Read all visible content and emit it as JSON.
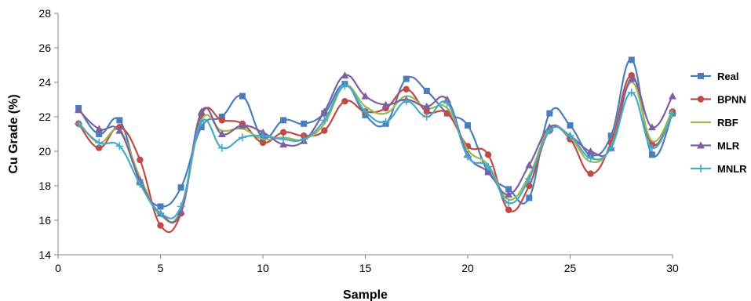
{
  "chart_data": {
    "type": "line",
    "title": "",
    "xlabel": "Sample",
    "ylabel": "Cu Grade (%)",
    "xlim": [
      0,
      30
    ],
    "ylim": [
      14,
      28
    ],
    "xticks": [
      0,
      5,
      10,
      15,
      20,
      25,
      30
    ],
    "yticks": [
      14,
      16,
      18,
      20,
      22,
      24,
      26,
      28
    ],
    "grid": false,
    "legend_position": "right",
    "x": [
      1,
      2,
      3,
      4,
      5,
      6,
      7,
      8,
      9,
      10,
      11,
      12,
      13,
      14,
      15,
      16,
      17,
      18,
      19,
      20,
      21,
      22,
      23,
      24,
      25,
      26,
      27,
      28,
      29,
      30
    ],
    "series": [
      {
        "name": "Real",
        "color": "#4a7ebb",
        "marker": "square",
        "values": [
          22.5,
          21.0,
          21.8,
          18.2,
          16.8,
          17.9,
          21.4,
          22.0,
          23.2,
          20.8,
          21.8,
          21.6,
          22.2,
          23.9,
          22.1,
          21.6,
          24.2,
          23.5,
          22.2,
          21.5,
          18.8,
          17.8,
          17.3,
          22.2,
          21.5,
          19.8,
          20.9,
          25.3,
          19.8,
          22.2
        ]
      },
      {
        "name": "BPNN",
        "color": "#be4b48",
        "marker": "circle",
        "values": [
          21.6,
          20.2,
          21.4,
          19.5,
          15.7,
          16.4,
          22.1,
          21.8,
          21.6,
          20.5,
          21.1,
          20.9,
          21.2,
          22.9,
          22.3,
          22.5,
          23.6,
          22.3,
          22.2,
          20.3,
          19.8,
          16.6,
          18.0,
          21.2,
          20.7,
          18.7,
          20.5,
          24.4,
          20.4,
          22.3
        ]
      },
      {
        "name": "RBF",
        "color": "#98b954",
        "marker": "none",
        "values": [
          21.7,
          20.5,
          21.2,
          18.5,
          16.3,
          16.6,
          21.8,
          21.2,
          21.3,
          20.7,
          20.8,
          20.7,
          21.6,
          23.8,
          22.6,
          22.2,
          23.2,
          22.5,
          22.5,
          20.1,
          19.2,
          17.2,
          18.6,
          21.3,
          20.8,
          19.4,
          20.3,
          24.0,
          20.6,
          22.4
        ]
      },
      {
        "name": "MLR",
        "color": "#7d60a0",
        "marker": "triangle",
        "values": [
          22.4,
          21.3,
          21.2,
          18.3,
          16.4,
          16.5,
          22.3,
          21.0,
          21.5,
          21.1,
          20.4,
          20.6,
          22.3,
          24.4,
          23.2,
          22.7,
          23.0,
          22.6,
          23.0,
          19.8,
          18.8,
          17.5,
          19.2,
          21.4,
          20.9,
          20.0,
          20.2,
          24.2,
          21.4,
          23.2
        ]
      },
      {
        "name": "MNLR",
        "color": "#46aac5",
        "marker": "plus",
        "values": [
          21.6,
          20.5,
          20.3,
          18.1,
          16.4,
          16.8,
          21.7,
          20.2,
          20.8,
          20.9,
          20.7,
          20.7,
          21.8,
          23.8,
          22.3,
          21.7,
          22.9,
          22.0,
          22.8,
          19.7,
          19.1,
          17.0,
          18.4,
          21.2,
          20.9,
          19.6,
          20.2,
          23.4,
          20.2,
          22.2
        ]
      }
    ]
  }
}
